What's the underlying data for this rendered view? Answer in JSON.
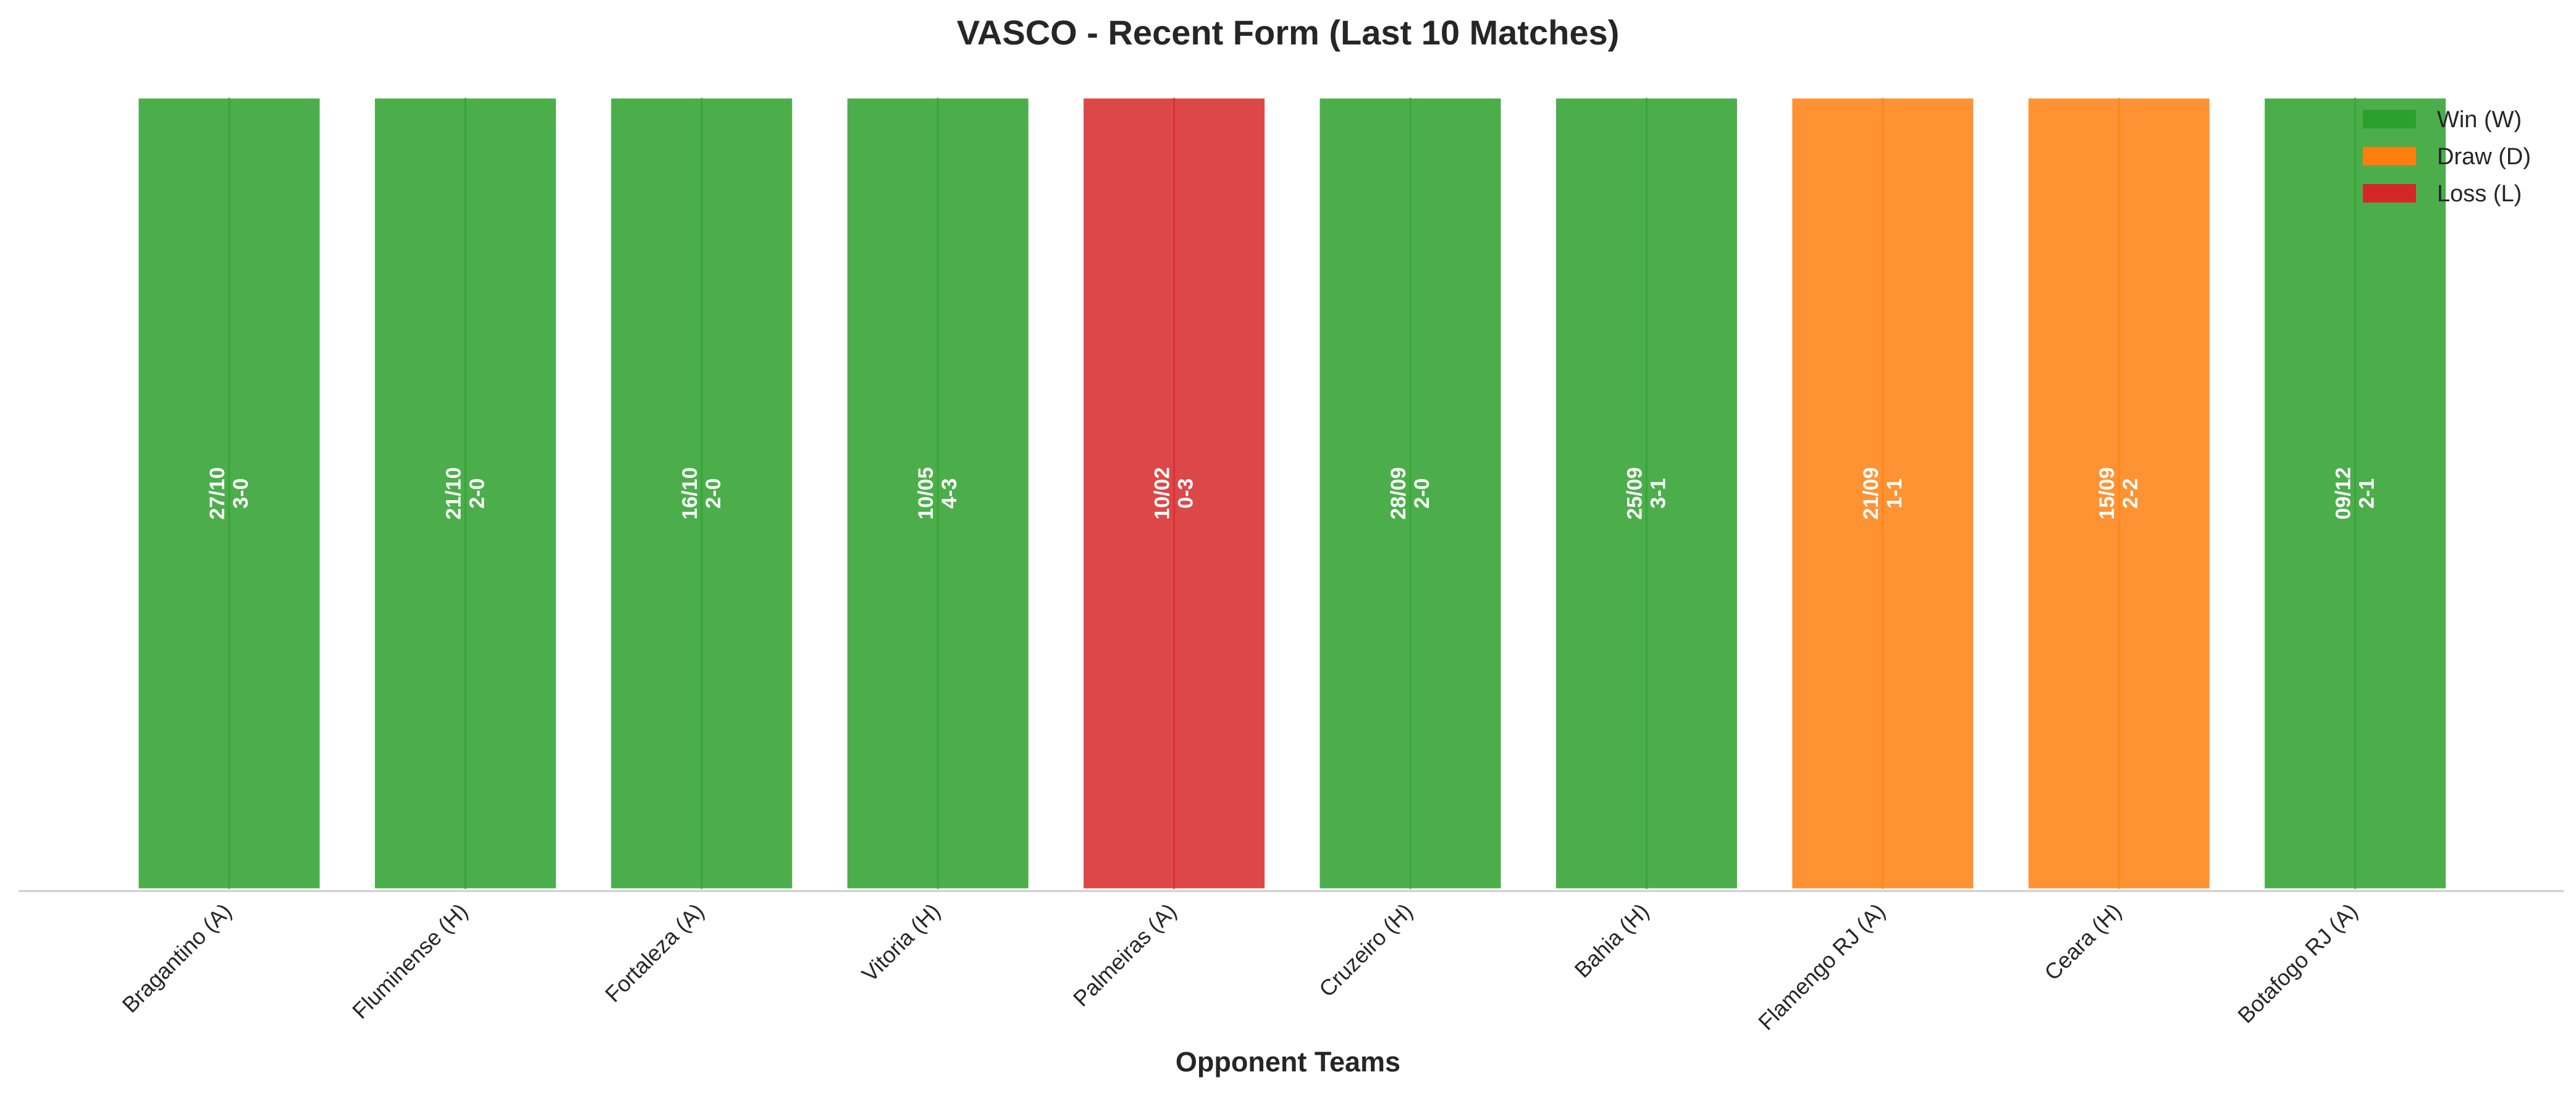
{
  "chart_data": {
    "type": "bar",
    "title": "VASCO - Recent Form (Last 10 Matches)",
    "xlabel": "Opponent Teams",
    "ylabel": "",
    "grid": false,
    "legend_placement": "top-right",
    "categories": [
      "Bragantino (A)",
      "Fluminense (H)",
      "Fortaleza (A)",
      "Vitoria (H)",
      "Palmeiras (A)",
      "Cruzeiro (H)",
      "Bahia (H)",
      "Flamengo RJ (A)",
      "Ceara (H)",
      "Botafogo RJ (A)"
    ],
    "values": [
      1,
      1,
      1,
      1,
      1,
      1,
      1,
      1,
      1,
      1
    ],
    "results": [
      "W",
      "W",
      "W",
      "W",
      "L",
      "W",
      "W",
      "D",
      "D",
      "W"
    ],
    "dates": [
      "27/10",
      "21/10",
      "16/10",
      "10/05",
      "10/02",
      "28/09",
      "25/09",
      "21/09",
      "15/09",
      "09/12"
    ],
    "scores": [
      "3-0",
      "2-0",
      "2-0",
      "4-3",
      "0-3",
      "2-0",
      "3-1",
      "1-1",
      "2-2",
      "2-1"
    ],
    "legend": [
      {
        "key": "W",
        "label": "Win (W)",
        "color": "#2ca02c"
      },
      {
        "key": "D",
        "label": "Draw (D)",
        "color": "#ff7f0e"
      },
      {
        "key": "L",
        "label": "Loss (L)",
        "color": "#d62728"
      }
    ],
    "colors": {
      "W": "#2ca02c",
      "D": "#ff7f0e",
      "L": "#d62728"
    },
    "ylim": [
      0,
      1
    ]
  }
}
